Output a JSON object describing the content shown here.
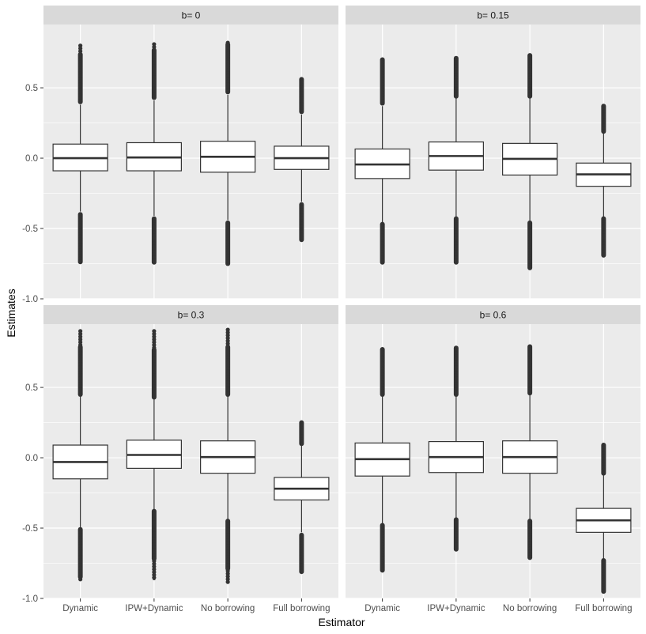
{
  "chart_data": {
    "type": "boxplot",
    "facet_title_prefix": "b= ",
    "xlabel": "Estimator",
    "ylabel": "Estimates",
    "categories": [
      "Dynamic",
      "IPW+Dynamic",
      "No borrowing",
      "Full borrowing"
    ],
    "ylim": [
      -1.0,
      0.95
    ],
    "yticks": [
      -1.0,
      -0.5,
      0.0,
      0.5
    ],
    "ytick_labels": [
      "-1.0",
      "-0.5",
      "0.0",
      "0.5"
    ],
    "grid": true,
    "panels": [
      {
        "b": "0",
        "boxes": [
          {
            "category": "Dynamic",
            "q1": -0.09,
            "median": 0.0,
            "q3": 0.1,
            "whisker_low": -0.38,
            "whisker_high": 0.38,
            "outliers_low": [
              -0.74,
              -0.4
            ],
            "outliers_high": [
              0.4,
              0.67,
              0.8
            ]
          },
          {
            "category": "IPW+Dynamic",
            "q1": -0.09,
            "median": 0.005,
            "q3": 0.11,
            "whisker_low": -0.41,
            "whisker_high": 0.41,
            "outliers_low": [
              -0.74,
              -0.43
            ],
            "outliers_high": [
              0.43,
              0.68,
              0.81
            ]
          },
          {
            "category": "No borrowing",
            "q1": -0.1,
            "median": 0.01,
            "q3": 0.12,
            "whisker_low": -0.44,
            "whisker_high": 0.45,
            "outliers_low": [
              -0.75,
              -0.46
            ],
            "outliers_high": [
              0.47,
              0.69,
              0.82
            ]
          },
          {
            "category": "Full borrowing",
            "q1": -0.08,
            "median": 0.0,
            "q3": 0.085,
            "whisker_low": -0.31,
            "whisker_high": 0.31,
            "outliers_low": [
              -0.58,
              -0.33
            ],
            "outliers_high": [
              0.33,
              0.56
            ]
          }
        ]
      },
      {
        "b": "0.15",
        "boxes": [
          {
            "category": "Dynamic",
            "q1": -0.145,
            "median": -0.045,
            "q3": 0.065,
            "whisker_low": -0.46,
            "whisker_high": 0.37,
            "outliers_low": [
              -0.74,
              -0.47
            ],
            "outliers_high": [
              0.39,
              0.7
            ]
          },
          {
            "category": "IPW+Dynamic",
            "q1": -0.085,
            "median": 0.015,
            "q3": 0.115,
            "whisker_low": -0.42,
            "whisker_high": 0.43,
            "outliers_low": [
              -0.74,
              -0.43
            ],
            "outliers_high": [
              0.44,
              0.71
            ]
          },
          {
            "category": "No borrowing",
            "q1": -0.12,
            "median": -0.005,
            "q3": 0.105,
            "whisker_low": -0.45,
            "whisker_high": 0.43,
            "outliers_low": [
              -0.78,
              -0.46
            ],
            "outliers_high": [
              0.44,
              0.73
            ]
          },
          {
            "category": "Full borrowing",
            "q1": -0.2,
            "median": -0.115,
            "q3": -0.035,
            "whisker_low": -0.42,
            "whisker_high": 0.18,
            "outliers_low": [
              -0.69,
              -0.43
            ],
            "outliers_high": [
              0.19,
              0.37
            ]
          }
        ]
      },
      {
        "b": "0.3",
        "boxes": [
          {
            "category": "Dynamic",
            "q1": -0.15,
            "median": -0.03,
            "q3": 0.09,
            "whisker_low": -0.5,
            "whisker_high": 0.44,
            "outliers_low": [
              -0.87,
              -0.51
            ],
            "outliers_high": [
              0.45,
              0.9
            ]
          },
          {
            "category": "IPW+Dynamic",
            "q1": -0.075,
            "median": 0.02,
            "q3": 0.125,
            "whisker_low": -0.37,
            "whisker_high": 0.42,
            "outliers_low": [
              -0.87,
              -0.38
            ],
            "outliers_high": [
              0.43,
              0.9
            ]
          },
          {
            "category": "No borrowing",
            "q1": -0.11,
            "median": 0.005,
            "q3": 0.12,
            "whisker_low": -0.44,
            "whisker_high": 0.44,
            "outliers_low": [
              -0.89,
              -0.45
            ],
            "outliers_high": [
              0.45,
              0.91
            ]
          },
          {
            "category": "Full borrowing",
            "q1": -0.3,
            "median": -0.22,
            "q3": -0.14,
            "whisker_low": -0.53,
            "whisker_high": 0.09,
            "outliers_low": [
              -0.81,
              -0.55
            ],
            "outliers_high": [
              0.1,
              0.25
            ]
          }
        ]
      },
      {
        "b": "0.6",
        "boxes": [
          {
            "category": "Dynamic",
            "q1": -0.13,
            "median": -0.01,
            "q3": 0.105,
            "whisker_low": -0.47,
            "whisker_high": 0.44,
            "outliers_low": [
              -0.8,
              -0.48
            ],
            "outliers_high": [
              0.45,
              0.77
            ]
          },
          {
            "category": "IPW+Dynamic",
            "q1": -0.105,
            "median": 0.005,
            "q3": 0.115,
            "whisker_low": -0.43,
            "whisker_high": 0.44,
            "outliers_low": [
              -0.65,
              -0.44
            ],
            "outliers_high": [
              0.45,
              0.78
            ]
          },
          {
            "category": "No borrowing",
            "q1": -0.11,
            "median": 0.005,
            "q3": 0.12,
            "whisker_low": -0.44,
            "whisker_high": 0.45,
            "outliers_low": [
              -0.71,
              -0.45
            ],
            "outliers_high": [
              0.46,
              0.79
            ]
          },
          {
            "category": "Full borrowing",
            "q1": -0.53,
            "median": -0.445,
            "q3": -0.36,
            "whisker_low": -0.72,
            "whisker_high": -0.12,
            "outliers_low": [
              -0.95,
              -0.73
            ],
            "outliers_high": [
              -0.11,
              0.09
            ]
          }
        ]
      }
    ]
  }
}
